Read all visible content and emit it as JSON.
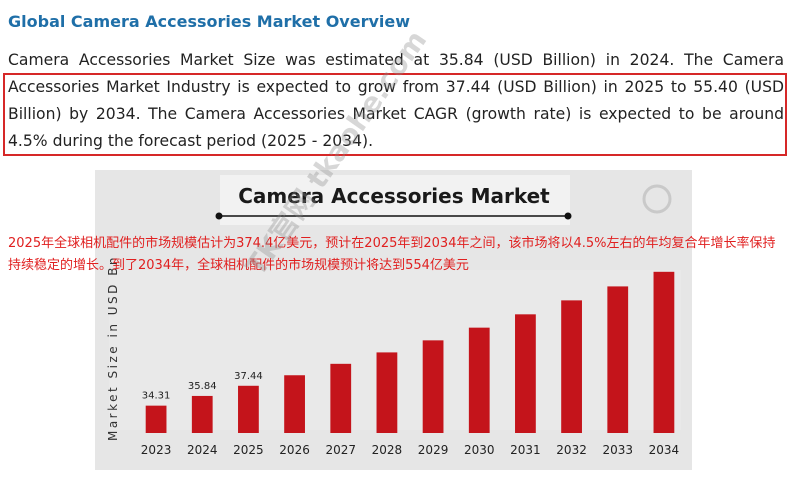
{
  "article": {
    "title": "Global Camera Accessories Market Overview",
    "paragraph": "Camera Accessories Market Size was estimated at 35.84 (USD Billion) in 2024. The Camera Accessories Market Industry is expected to grow from 37.44 (USD Billion) in 2025 to 55.40 (USD Billion) by 2034. The Camera Accessories Market CAGR (growth rate) is expected to be around 4.5% during the forecast period (2025 - 2034)."
  },
  "annotation": {
    "text": "2025年全球相机配件的市场规模估计为374.4亿美元，预计在2025年到2034年之间，该市场将以4.5%左右的年均复合年增长率保持持续稳定的增长。到了2034年，全球相机配件的市场规模预计将达到554亿美元"
  },
  "watermark": {
    "text": "TK官网 tkaohe.com"
  },
  "colors": {
    "title": "#1f6fa8",
    "bar": "#c4141b",
    "highlight_border": "#d62828",
    "annotation": "#e02020"
  },
  "chart_data": {
    "type": "bar",
    "title": "Camera Accessories Market",
    "ylabel": "Market Size in USD Bn",
    "xlabel": "",
    "categories": [
      "2023",
      "2024",
      "2025",
      "2026",
      "2027",
      "2028",
      "2029",
      "2030",
      "2031",
      "2032",
      "2033",
      "2034"
    ],
    "values": [
      34.31,
      35.84,
      37.44,
      39.1,
      40.9,
      42.7,
      44.6,
      46.6,
      48.7,
      50.9,
      53.1,
      55.4
    ],
    "data_labels": [
      "34.31",
      "35.84",
      "37.44",
      "",
      "",
      "",
      "",
      "",
      "",
      "",
      "",
      ""
    ],
    "ylim": [
      30,
      56
    ],
    "grid": false,
    "legend": "none"
  }
}
